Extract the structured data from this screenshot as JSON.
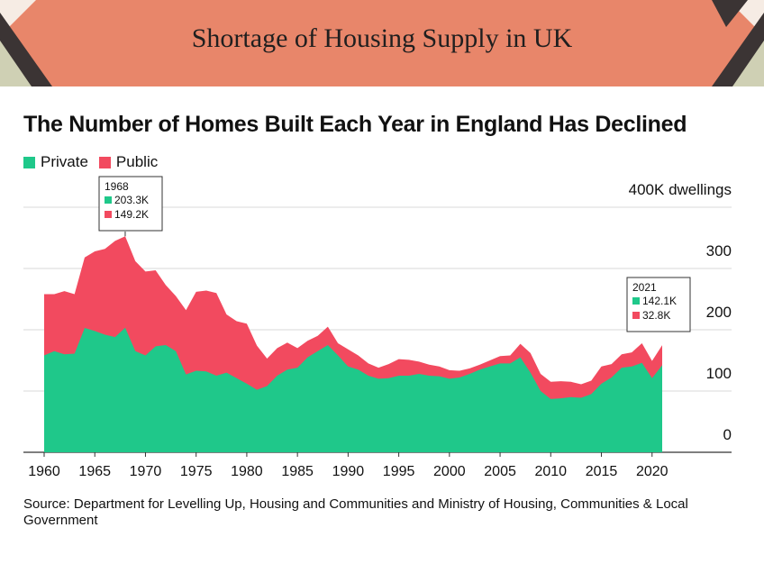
{
  "banner": {
    "title": "Shortage of Housing Supply in UK"
  },
  "colors": {
    "banner_bg": "#e8866a",
    "private": "#1fc88a",
    "public": "#f24a5f",
    "grid": "#d9d9d9"
  },
  "chart_data": {
    "type": "area",
    "stacked": true,
    "title": "The Number of Homes Built Each Year in England Has Declined",
    "ylabel_unit": "dwellings",
    "ylim": [
      0,
      400
    ],
    "xlim": [
      1959,
      2022
    ],
    "y_ticks": [
      {
        "value": 0,
        "label": "0"
      },
      {
        "value": 100,
        "label": "100"
      },
      {
        "value": 200,
        "label": "200"
      },
      {
        "value": 300,
        "label": "300"
      },
      {
        "value": 400,
        "label": "400K dwellings"
      }
    ],
    "x_ticks": [
      1960,
      1965,
      1970,
      1975,
      1980,
      1985,
      1990,
      1995,
      2000,
      2005,
      2010,
      2015,
      2020
    ],
    "x": [
      1960,
      1961,
      1962,
      1963,
      1964,
      1965,
      1966,
      1967,
      1968,
      1969,
      1970,
      1971,
      1972,
      1973,
      1974,
      1975,
      1976,
      1977,
      1978,
      1979,
      1980,
      1981,
      1982,
      1983,
      1984,
      1985,
      1986,
      1987,
      1988,
      1989,
      1990,
      1991,
      1992,
      1993,
      1994,
      1995,
      1996,
      1997,
      1998,
      1999,
      2000,
      2001,
      2002,
      2003,
      2004,
      2005,
      2006,
      2007,
      2008,
      2009,
      2010,
      2011,
      2012,
      2013,
      2014,
      2015,
      2016,
      2017,
      2018,
      2019,
      2020,
      2021
    ],
    "series": [
      {
        "name": "Private",
        "values": [
          158,
          165,
          160,
          161,
          203,
          198,
          192,
          188,
          203.3,
          165,
          158,
          173,
          175,
          165,
          127,
          133,
          132,
          125,
          130,
          121,
          112,
          102,
          108,
          125,
          135,
          138,
          155,
          165,
          175,
          158,
          140,
          135,
          125,
          120,
          121,
          125,
          125,
          128,
          125,
          124,
          120,
          122,
          128,
          135,
          140,
          145,
          145,
          155,
          130,
          100,
          87,
          88,
          90,
          89,
          95,
          112,
          122,
          138,
          140,
          146,
          121,
          142.1
        ]
      },
      {
        "name": "Public",
        "values": [
          100,
          93,
          103,
          97,
          115,
          130,
          140,
          157,
          149.2,
          147,
          137,
          124,
          98,
          90,
          105,
          129,
          132,
          135,
          95,
          93,
          98,
          72,
          45,
          45,
          44,
          32,
          27,
          25,
          30,
          20,
          28,
          23,
          20,
          18,
          23,
          27,
          26,
          20,
          18,
          16,
          14,
          11,
          9,
          8,
          10,
          12,
          13,
          22,
          32,
          28,
          28,
          28,
          25,
          22,
          22,
          28,
          22,
          22,
          23,
          32,
          28,
          32.8
        ]
      }
    ],
    "annotations": [
      {
        "label": "1968",
        "items": [
          {
            "series": "Private",
            "text": "203.3K"
          },
          {
            "series": "Public",
            "text": "149.2K"
          }
        ]
      },
      {
        "label": "2021",
        "items": [
          {
            "series": "Private",
            "text": "142.1K"
          },
          {
            "series": "Public",
            "text": "32.8K"
          }
        ]
      }
    ],
    "legend": [
      "Private",
      "Public"
    ],
    "legend_position": "top-left",
    "grid": true
  },
  "source": "Source: Department for Levelling Up, Housing and Communities and Ministry of Housing, Communities & Local Government"
}
